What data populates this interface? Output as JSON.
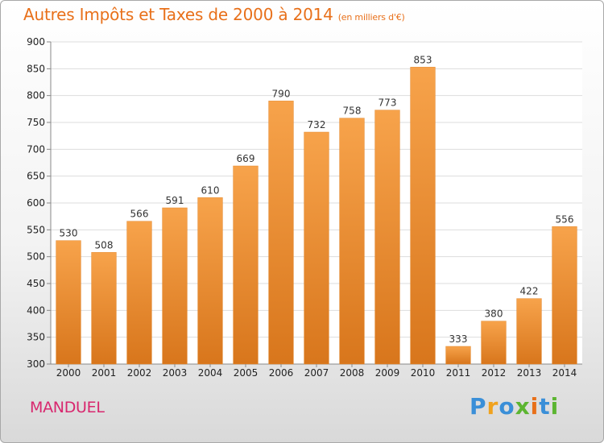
{
  "title": "Autres Impôts et Taxes de 2000 à 2014",
  "subtitle": "(en milliers d'€)",
  "city_label": "MANDUEL",
  "logo": {
    "text": "Proxiti",
    "letters": [
      "P",
      "r",
      "o",
      "x",
      "i",
      "t",
      "i"
    ],
    "colors": [
      "#3a8fd8",
      "#f0a21e",
      "#3a8fd8",
      "#5cb531",
      "#e8701a",
      "#3a8fd8",
      "#5cb531"
    ]
  },
  "colors": {
    "bar_top": "#f7a34b",
    "bar_bottom": "#d8761c",
    "title": "#e8701a",
    "city": "#d8276e",
    "grid": "#dddddd"
  },
  "chart_data": {
    "type": "bar",
    "categories": [
      "2000",
      "2001",
      "2002",
      "2003",
      "2004",
      "2005",
      "2006",
      "2007",
      "2008",
      "2009",
      "2010",
      "2011",
      "2012",
      "2013",
      "2014"
    ],
    "values": [
      530,
      508,
      566,
      591,
      610,
      669,
      790,
      732,
      758,
      773,
      853,
      333,
      380,
      422,
      556
    ],
    "title": "Autres Impôts et Taxes de 2000 à 2014",
    "subtitle": "(en milliers d'€)",
    "xlabel": "",
    "ylabel": "",
    "ylim": [
      300,
      900
    ],
    "yticks": [
      300,
      350,
      400,
      450,
      500,
      550,
      600,
      650,
      700,
      750,
      800,
      850,
      900
    ],
    "grid": true,
    "data_labels": true
  }
}
